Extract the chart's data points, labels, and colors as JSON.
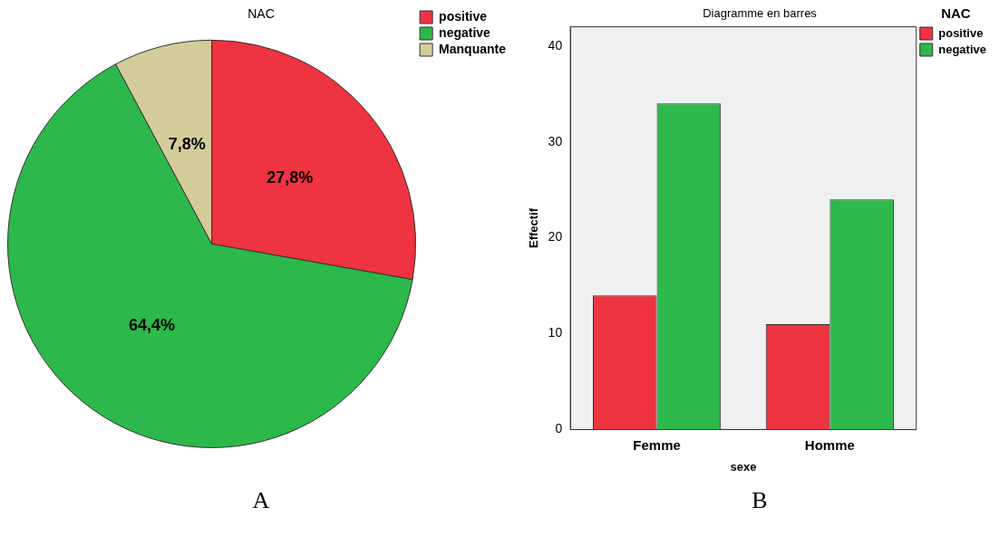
{
  "chart_data": [
    {
      "type": "pie",
      "title": "NAC",
      "categories": [
        "positive",
        "negative",
        "Manquante"
      ],
      "values": [
        27.8,
        64.4,
        7.8
      ],
      "colors": [
        "#ef3340",
        "#2db84b",
        "#d4cc99"
      ],
      "value_labels": [
        "27,8%",
        "64,4%",
        "7,8%"
      ],
      "legend": "top right",
      "annotations": [
        "A"
      ]
    },
    {
      "type": "bar",
      "title": "Diagramme en barres",
      "categories": [
        "Femme",
        "Homme"
      ],
      "series": [
        {
          "name": "positive",
          "color": "#ef3340",
          "values": [
            14,
            11
          ]
        },
        {
          "name": "negative",
          "color": "#2db84b",
          "values": [
            34,
            24
          ]
        }
      ],
      "xlabel": "sexe",
      "ylabel": "Effectif",
      "legend_title": "NAC",
      "legend": "top right",
      "ylim": [
        0,
        42
      ],
      "yticks": [
        0,
        10,
        20,
        30,
        40
      ],
      "grid": false,
      "annotations": [
        "B"
      ]
    }
  ]
}
